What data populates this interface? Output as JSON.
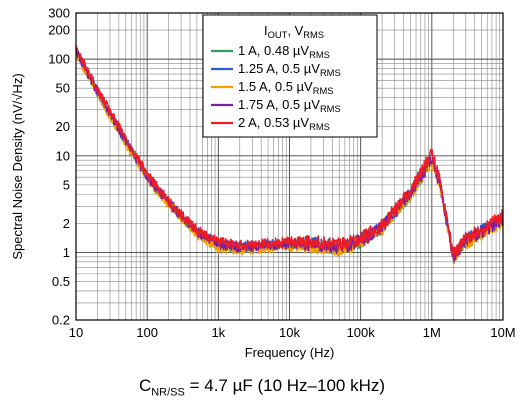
{
  "chart_data": {
    "type": "line",
    "title": "",
    "xlabel": "Frequency (Hz)",
    "ylabel": "Spectral Noise Density (nV/√Hz)",
    "xscale": "log",
    "yscale": "log",
    "xlim": [
      10,
      10000000
    ],
    "ylim": [
      0.2,
      300
    ],
    "x_ticks": [
      10,
      100,
      1000,
      10000,
      100000,
      1000000,
      10000000
    ],
    "x_tick_labels": [
      "10",
      "100",
      "1k",
      "10k",
      "100k",
      "1M",
      "10M"
    ],
    "y_ticks": [
      0.2,
      0.5,
      1,
      2,
      5,
      10,
      20,
      50,
      100,
      200,
      300
    ],
    "y_tick_labels": [
      "0.2",
      "0.5",
      "1",
      "2",
      "5",
      "10",
      "20",
      "50",
      "100",
      "200",
      "300"
    ],
    "grid": true,
    "legend_position": "top-center",
    "legend_title": "IOUT, VRMS",
    "series": [
      {
        "name": "1 A, 0.48 µVRMS",
        "color": "#2e9e5b",
        "x": [
          10,
          20,
          50,
          100,
          200,
          500,
          1000,
          2000,
          5000,
          10000,
          20000,
          50000,
          100000,
          200000,
          500000,
          1000000,
          1300000,
          2000000,
          3000000,
          5000000,
          10000000
        ],
        "y": [
          120,
          45,
          14,
          6,
          3.2,
          1.6,
          1.2,
          1.1,
          1.15,
          1.2,
          1.2,
          1.1,
          1.3,
          1.8,
          4,
          9,
          5,
          0.9,
          1.3,
          1.6,
          2.2
        ]
      },
      {
        "name": "1.25 A, 0.5 µVRMS",
        "color": "#2b5cd6",
        "x": [
          10,
          20,
          50,
          100,
          200,
          500,
          1000,
          2000,
          5000,
          10000,
          20000,
          50000,
          100000,
          200000,
          500000,
          1000000,
          1300000,
          2000000,
          3000000,
          5000000,
          10000000
        ],
        "y": [
          125,
          47,
          14.5,
          6.2,
          3.3,
          1.65,
          1.25,
          1.15,
          1.2,
          1.25,
          1.25,
          1.15,
          1.35,
          1.85,
          4.2,
          9.5,
          5.2,
          0.92,
          1.35,
          1.65,
          2.3
        ]
      },
      {
        "name": "1.5 A, 0.5 µVRMS",
        "color": "#f5a000",
        "x": [
          10,
          20,
          50,
          100,
          200,
          500,
          1000,
          2000,
          5000,
          10000,
          20000,
          50000,
          100000,
          200000,
          500000,
          1000000,
          1300000,
          2000000,
          3000000,
          5000000,
          10000000
        ],
        "y": [
          115,
          44,
          13.5,
          5.8,
          3.1,
          1.55,
          1.1,
          1.05,
          1.1,
          1.15,
          1.15,
          1.05,
          1.25,
          1.75,
          3.9,
          8.8,
          4.8,
          0.85,
          1.25,
          1.55,
          2.1
        ]
      },
      {
        "name": "1.75 A, 0.5 µVRMS",
        "color": "#7a1fa2",
        "x": [
          10,
          20,
          50,
          100,
          200,
          500,
          1000,
          2000,
          5000,
          10000,
          20000,
          50000,
          100000,
          200000,
          500000,
          1000000,
          1300000,
          2000000,
          3000000,
          5000000,
          10000000
        ],
        "y": [
          122,
          46,
          14.2,
          6.1,
          3.25,
          1.62,
          1.22,
          1.12,
          1.18,
          1.22,
          1.22,
          1.12,
          1.32,
          1.82,
          4.1,
          9.3,
          5.1,
          0.9,
          1.32,
          1.62,
          2.25
        ]
      },
      {
        "name": "2 A, 0.53 µVRMS",
        "color": "#ee1c25",
        "x": [
          10,
          20,
          50,
          100,
          200,
          500,
          1000,
          2000,
          5000,
          10000,
          20000,
          50000,
          100000,
          200000,
          500000,
          1000000,
          1300000,
          2000000,
          3000000,
          5000000,
          10000000
        ],
        "y": [
          130,
          48,
          15,
          6.5,
          3.4,
          1.7,
          1.3,
          1.2,
          1.25,
          1.3,
          1.3,
          1.2,
          1.4,
          1.9,
          4.4,
          10.5,
          5.4,
          0.95,
          1.4,
          1.7,
          2.4
        ]
      }
    ]
  },
  "caption": "CNR/SS = 4.7 µF (10 Hz–100 kHz)"
}
